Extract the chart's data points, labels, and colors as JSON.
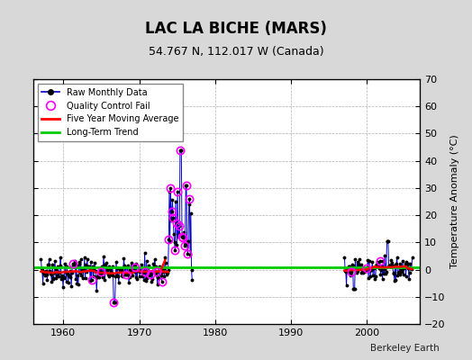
{
  "title": "LAC LA BICHE (MARS)",
  "subtitle": "54.767 N, 112.017 W (Canada)",
  "ylabel": "Temperature Anomaly (°C)",
  "credit": "Berkeley Earth",
  "xlim": [
    1956,
    2007
  ],
  "ylim": [
    -20,
    70
  ],
  "yticks": [
    -20,
    -10,
    0,
    10,
    20,
    30,
    40,
    50,
    60,
    70
  ],
  "xticks": [
    1960,
    1970,
    1980,
    1990,
    2000
  ],
  "bg_color": "#d8d8d8",
  "plot_bg_color": "#ffffff",
  "grid_color": "#b0b0b0",
  "long_term_trend_y": 0.8,
  "raw_data_color": "#0000cc",
  "raw_marker_color": "#000000",
  "qc_fail_color": "#ff00ff",
  "moving_avg_color": "#ff0000",
  "trend_color": "#00cc00",
  "figsize": [
    5.24,
    4.0
  ],
  "dpi": 100
}
